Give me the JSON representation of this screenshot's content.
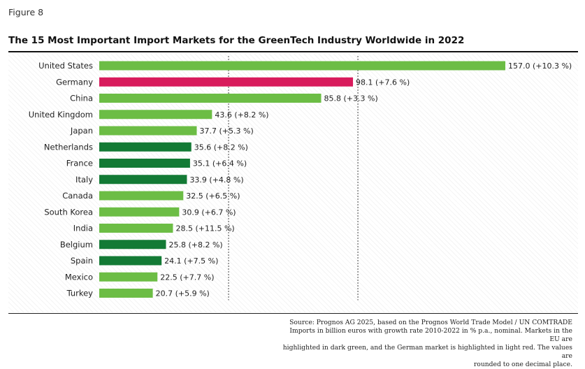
{
  "figure_label": "Figure 8",
  "title": "The 15 Most Important Import Markets for the GreenTech Industry Worldwide in 2022",
  "source_lines": [
    "Source: Prognos AG 2025, based on the Prognos World Trade Model / UN COMTRADE",
    "Imports in billion euros with growth rate 2010-2022 in % p.a., nominal. Markets in the EU are",
    "highlighted in dark green, and the German market is highlighted in light red. The values are",
    "rounded to one decimal place."
  ],
  "colors": {
    "default": "#6cbd45",
    "eu": "#137a35",
    "germany": "#d81b5c"
  },
  "chart_data": {
    "type": "bar",
    "orientation": "horizontal",
    "title": "The 15 Most Important Import Markets for the GreenTech Industry Worldwide in 2022",
    "xlabel": "",
    "ylabel": "",
    "xlim": [
      0,
      157
    ],
    "gridlines_x": [
      50,
      100
    ],
    "categories": [
      "United States",
      "Germany",
      "China",
      "United Kingdom",
      "Japan",
      "Netherlands",
      "France",
      "Italy",
      "Canada",
      "South Korea",
      "India",
      "Belgium",
      "Spain",
      "Mexico",
      "Turkey"
    ],
    "values": [
      157.0,
      98.1,
      85.8,
      43.6,
      37.7,
      35.6,
      35.1,
      33.9,
      32.5,
      30.9,
      28.5,
      25.8,
      24.1,
      22.5,
      20.7
    ],
    "growth_rates": [
      10.3,
      7.6,
      3.3,
      8.2,
      5.3,
      8.2,
      6.4,
      4.8,
      6.5,
      6.7,
      11.5,
      8.2,
      7.5,
      7.7,
      5.9
    ],
    "labels": [
      "157.0 (+10.3 %)",
      "98.1 (+7.6 %)",
      "85.8 (+3.3 %)",
      "43.6 (+8.2 %)",
      "37.7 (+5.3 %)",
      "35.6 (+8.2 %)",
      "35.1 (+6.4 %)",
      "33.9 (+4.8 %)",
      "32.5 (+6.5 %)",
      "30.9 (+6.7 %)",
      "28.5 (+11.5 %)",
      "25.8 (+8.2 %)",
      "24.1 (+7.5 %)",
      "22.5 (+7.7 %)",
      "20.7 (+5.9 %)"
    ],
    "groups": [
      "default",
      "germany",
      "default",
      "default",
      "default",
      "eu",
      "eu",
      "eu",
      "default",
      "default",
      "default",
      "eu",
      "eu",
      "default",
      "default"
    ]
  }
}
